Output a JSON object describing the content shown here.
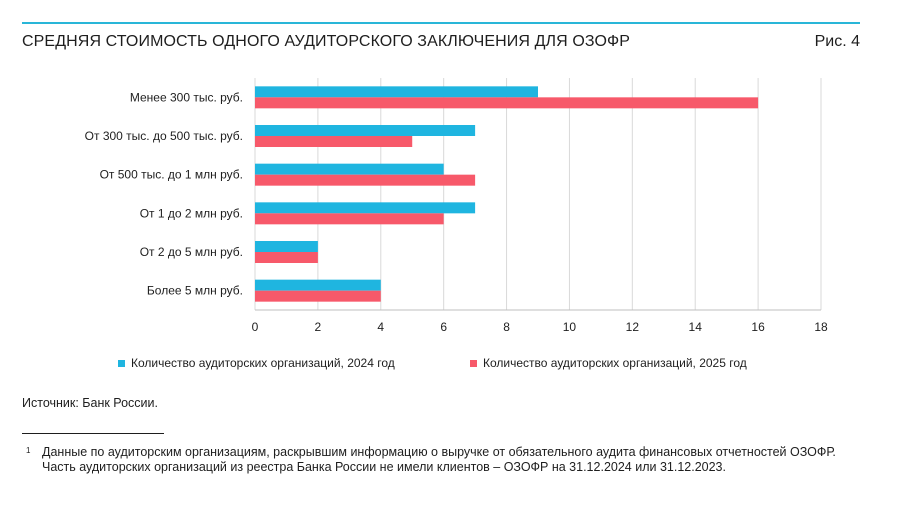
{
  "header": {
    "title": "СРЕДНЯЯ СТОИМОСТЬ ОДНОГО АУДИТОРСКОГО ЗАКЛЮЧЕНИЯ ДЛЯ ОЗОФР",
    "figure_label": "Рис. 4"
  },
  "chart_data": {
    "type": "bar",
    "orientation": "horizontal",
    "title": "СРЕДНЯЯ СТОИМОСТЬ ОДНОГО АУДИТОРСКОГО ЗАКЛЮЧЕНИЯ ДЛЯ ОЗОФР",
    "categories": [
      "Менее 300 тыс. руб.",
      "От 300 тыс. до 500 тыс. руб.",
      "От 500 тыс.  до 1 млн руб.",
      "От 1 до 2 млн руб.",
      "От 2 до 5 млн руб.",
      "Более 5 млн руб."
    ],
    "series": [
      {
        "name": "Количество аудиторских организаций, 2024 год",
        "color": "#1fb5e0",
        "values": [
          9,
          7,
          6,
          7,
          2,
          4
        ]
      },
      {
        "name": "Количество аудиторских организаций, 2025 год",
        "color": "#f7596a",
        "values": [
          16,
          5,
          7,
          6,
          2,
          4
        ]
      }
    ],
    "xlim": [
      0,
      18
    ],
    "xticks": [
      0,
      2,
      4,
      6,
      8,
      10,
      12,
      14,
      16,
      18
    ],
    "xlabel": "",
    "ylabel": "",
    "grid": true,
    "legend_position": "bottom"
  },
  "source": "Источник: Банк России.",
  "footnote": {
    "marker": "1",
    "text": "Данные по аудиторским организациям, раскрывшим информацию о выручке от обязательного аудита финансовых отчетностей ОЗОФР. Часть аудиторских организаций из реестра Банка России не имели клиентов – ОЗОФР на 31.12.2024 или 31.12.2023."
  }
}
